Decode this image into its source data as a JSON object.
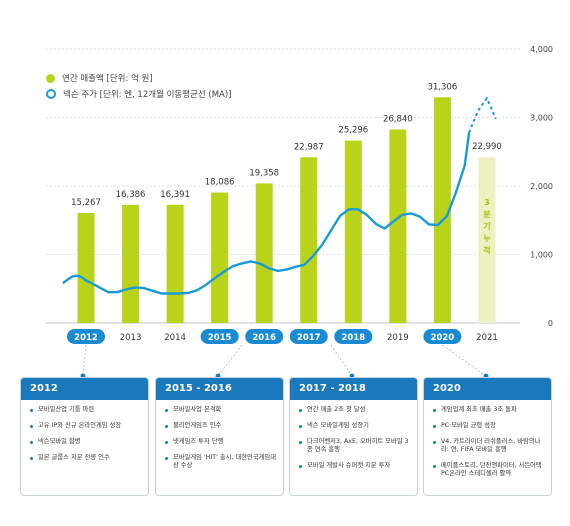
{
  "chart_data": {
    "type": "bar",
    "categories": [
      "2012",
      "2013",
      "2014",
      "2015",
      "2016",
      "2017",
      "2018",
      "2019",
      "2020",
      "2021"
    ],
    "highlighted_categories": [
      "2012",
      "2015",
      "2016",
      "2017",
      "2018",
      "2020"
    ],
    "series": [
      {
        "name": "연간 매출액 [단위: 억 원]",
        "values": [
          15267,
          16386,
          16391,
          18086,
          19358,
          22987,
          25296,
          26840,
          31306,
          22990
        ],
        "value_labels": [
          "15,267",
          "16,386",
          "16,391",
          "18,086",
          "19,358",
          "22,987",
          "25,296",
          "26,840",
          "31,306",
          "22,990"
        ],
        "color": "#b9d31b"
      }
    ],
    "bar_axis": {
      "label": "",
      "ylim": [
        0,
        38000
      ]
    },
    "partial_bar_note": "3분기 누적",
    "partial_bar_color": "#eef0c0",
    "line_series": {
      "name": "넥슨 주가 [단위: 엔, 12개월 이동평균선 (MA)]",
      "color": "#1a9ad6",
      "x": [
        2011.5,
        2011.6,
        2011.7,
        2011.8,
        2011.9,
        2012.0,
        2012.1,
        2012.3,
        2012.5,
        2012.7,
        2012.9,
        2013.1,
        2013.3,
        2013.5,
        2013.7,
        2013.9,
        2014.1,
        2014.3,
        2014.5,
        2014.7,
        2014.9,
        2015.1,
        2015.3,
        2015.5,
        2015.7,
        2015.9,
        2016.1,
        2016.3,
        2016.5,
        2016.7,
        2016.9,
        2017.1,
        2017.3,
        2017.5,
        2017.7,
        2017.9,
        2018.1,
        2018.3,
        2018.5,
        2018.7,
        2018.9,
        2019.1,
        2019.3,
        2019.5,
        2019.7,
        2019.9,
        2020.1,
        2020.3,
        2020.5,
        2020.6
      ],
      "y": [
        590,
        640,
        680,
        690,
        670,
        620,
        590,
        520,
        450,
        450,
        490,
        520,
        510,
        470,
        430,
        430,
        430,
        440,
        480,
        560,
        660,
        750,
        830,
        870,
        900,
        870,
        800,
        760,
        780,
        820,
        850,
        980,
        1140,
        1350,
        1560,
        1660,
        1660,
        1580,
        1450,
        1380,
        1480,
        1580,
        1600,
        1550,
        1440,
        1430,
        1560,
        1900,
        2300,
        2780
      ],
      "forecast_x": [
        2020.6,
        2020.8,
        2021.0,
        2021.2
      ],
      "forecast_y": [
        2780,
        3100,
        3280,
        2980
      ]
    },
    "line_axis": {
      "ylim": [
        0,
        4000
      ],
      "ticks": [
        "0",
        "1,000",
        "2,000",
        "3,000",
        "4,000"
      ]
    },
    "grid": "horizontal-dashed",
    "legend_position": "top-left"
  },
  "legend": {
    "revenue": "연간 매출액 [단위: 억 원]",
    "stock": "넥슨 주가 [단위: 엔, 12개월 이동평균선 (MA)]"
  },
  "panels": [
    {
      "year": "2012",
      "items": [
        "모바일산업 기틀 마련",
        "고유 IP와 신규 온라인게임 성장",
        "넥슨모바일 합병",
        "일본 글룹스 지분 전량 인수"
      ]
    },
    {
      "year": "2015 - 2016",
      "items": [
        "모바일사업 본격화",
        "불리언게임즈 인수",
        "넷게임즈 투자 단행",
        "모바일게임 'HIT' 출시, 대한민국게임대상 수상"
      ]
    },
    {
      "year": "2017 - 2018",
      "items": [
        "연간 매출 2조 첫 달성",
        "넥슨 모바일게임 성장기",
        "다크어벤저3, AxE, 오버히트 모바일 3종 연속 흥행",
        "모바일 개발사 슈퍼캣 지분 투자"
      ]
    },
    {
      "year": "2020",
      "items": [
        "게임업계 최초 매출 3조 돌파",
        "PC·모바일 균형 성장",
        "V4, 카트라이더 러쉬플러스, 바람의나라: 연, FIFA 모바일 흥행",
        "메이플스토리, 던전앤파이터, 서든어택 PC온라인 스테디셀러 활약"
      ]
    }
  ]
}
